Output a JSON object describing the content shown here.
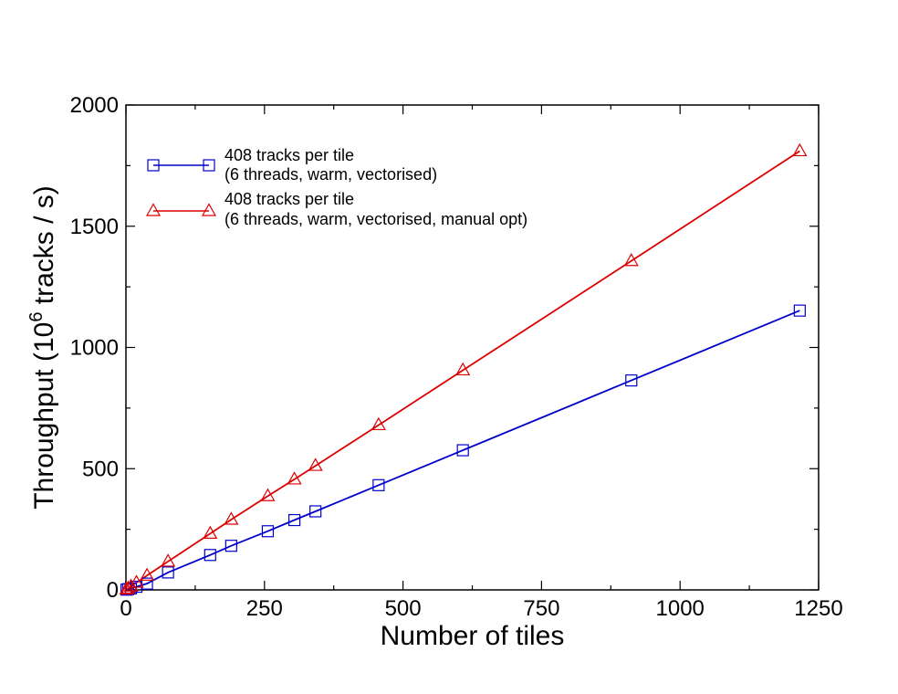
{
  "chart_data": {
    "type": "line",
    "title": "",
    "xlabel": "Number of tiles",
    "ylabel_prefix": "Throughput (10",
    "ylabel_exponent": "6",
    "ylabel_suffix": " tracks / s)",
    "xlim": [
      0,
      1250
    ],
    "ylim": [
      0,
      2000
    ],
    "x_ticks": [
      0,
      250,
      500,
      750,
      1000,
      1250
    ],
    "y_ticks": [
      0,
      500,
      1000,
      1500,
      2000
    ],
    "x_tick_labels": [
      "0",
      "250",
      "500",
      "750",
      "1000",
      "1250"
    ],
    "y_tick_labels": [
      "0",
      "500",
      "1000",
      "1500",
      "2000"
    ],
    "grid": false,
    "legend_position": "top-left",
    "series": [
      {
        "label_line1": "408 tracks per tile",
        "label_line2": "(6 threads, warm, vectorised)",
        "color": "#0000cc",
        "marker": "square",
        "x": [
          1,
          4,
          9,
          19,
          38,
          76,
          152,
          190,
          256,
          304,
          342,
          456,
          608,
          912,
          1216
        ],
        "y": [
          1,
          3,
          6,
          13,
          26,
          72,
          144,
          182,
          242,
          288,
          324,
          432,
          576,
          864,
          1152
        ]
      },
      {
        "label_line1": "408 tracks per tile",
        "label_line2": "(6 threads, warm, vectorised, manual opt)",
        "color": "#dd0000",
        "marker": "triangle",
        "x": [
          1,
          4,
          9,
          19,
          38,
          76,
          152,
          190,
          256,
          304,
          342,
          456,
          608,
          912,
          1216
        ],
        "y": [
          2,
          6,
          14,
          30,
          59,
          117,
          232,
          290,
          387,
          456,
          512,
          680,
          906,
          1357,
          1810
        ]
      }
    ]
  }
}
